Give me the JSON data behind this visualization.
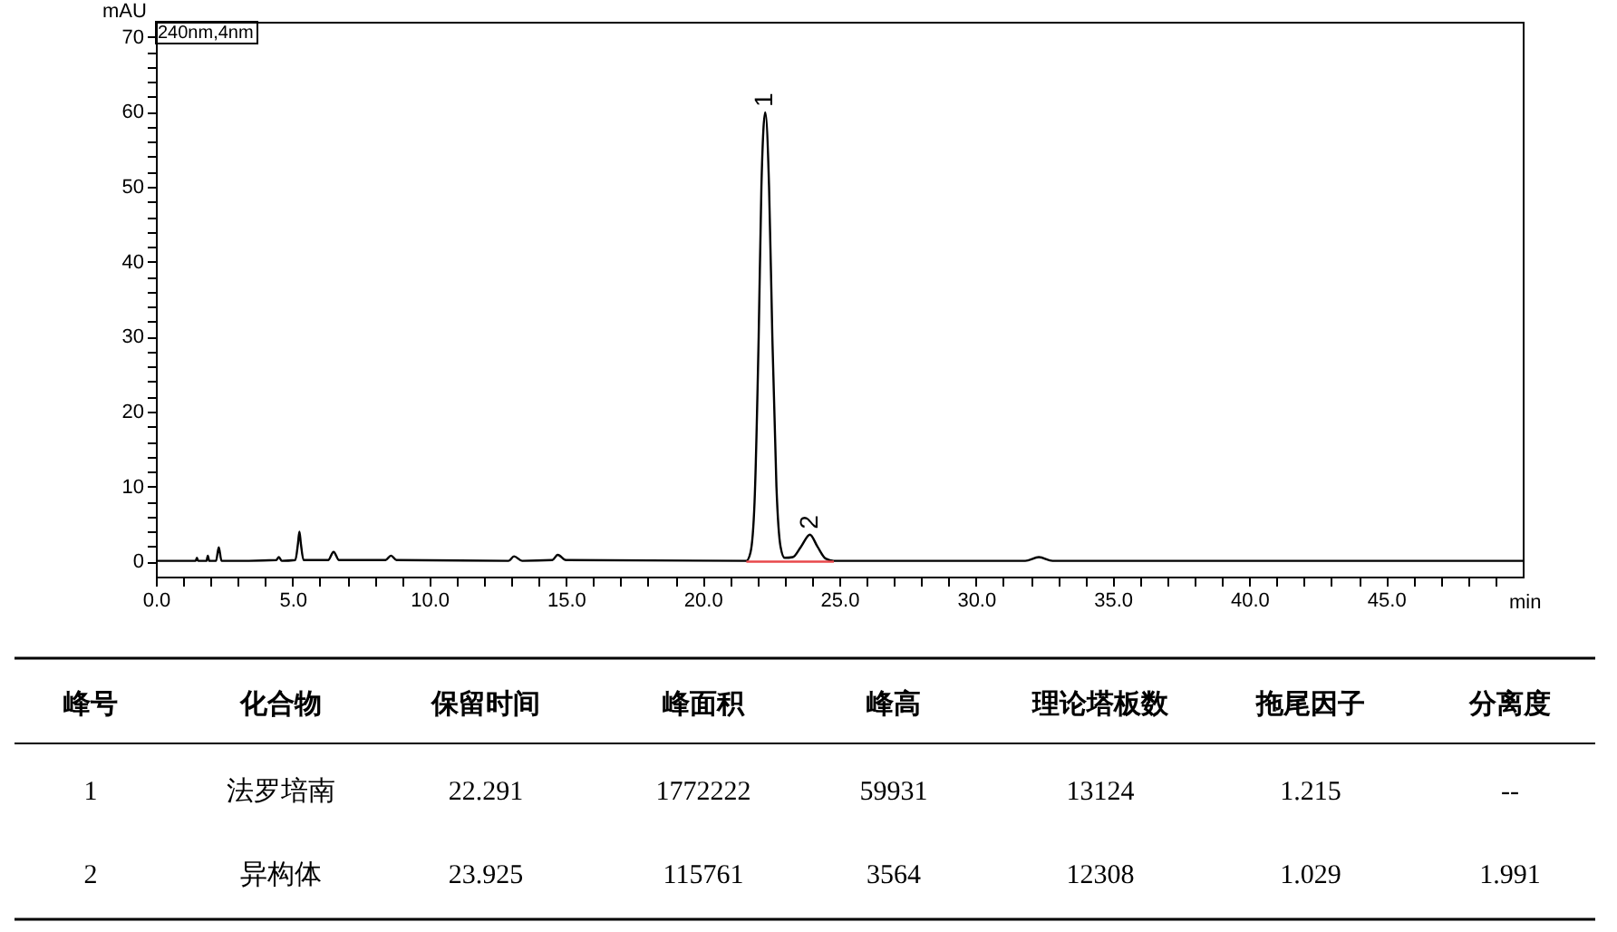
{
  "chart_data": {
    "type": "line",
    "xlabel": "min",
    "ylabel": "mAU",
    "xlim": [
      0,
      50
    ],
    "ylim": [
      -2,
      72
    ],
    "xticks": [
      {
        "value": 0,
        "label": "0.0"
      },
      {
        "value": 1,
        "label": null
      },
      {
        "value": 2,
        "label": null
      },
      {
        "value": 3,
        "label": null
      },
      {
        "value": 4,
        "label": null
      },
      {
        "value": 5,
        "label": "5.0"
      },
      {
        "value": 6,
        "label": null
      },
      {
        "value": 7,
        "label": null
      },
      {
        "value": 8,
        "label": null
      },
      {
        "value": 9,
        "label": null
      },
      {
        "value": 10,
        "label": "10.0"
      },
      {
        "value": 11,
        "label": null
      },
      {
        "value": 12,
        "label": null
      },
      {
        "value": 13,
        "label": null
      },
      {
        "value": 14,
        "label": null
      },
      {
        "value": 15,
        "label": "15.0"
      },
      {
        "value": 16,
        "label": null
      },
      {
        "value": 17,
        "label": null
      },
      {
        "value": 18,
        "label": null
      },
      {
        "value": 19,
        "label": null
      },
      {
        "value": 20,
        "label": "20.0"
      },
      {
        "value": 21,
        "label": null
      },
      {
        "value": 22,
        "label": null
      },
      {
        "value": 23,
        "label": null
      },
      {
        "value": 24,
        "label": null
      },
      {
        "value": 25,
        "label": "25.0"
      },
      {
        "value": 26,
        "label": null
      },
      {
        "value": 27,
        "label": null
      },
      {
        "value": 28,
        "label": null
      },
      {
        "value": 29,
        "label": null
      },
      {
        "value": 30,
        "label": "30.0"
      },
      {
        "value": 31,
        "label": null
      },
      {
        "value": 32,
        "label": null
      },
      {
        "value": 33,
        "label": null
      },
      {
        "value": 34,
        "label": null
      },
      {
        "value": 35,
        "label": "35.0"
      },
      {
        "value": 36,
        "label": null
      },
      {
        "value": 37,
        "label": null
      },
      {
        "value": 38,
        "label": null
      },
      {
        "value": 39,
        "label": null
      },
      {
        "value": 40,
        "label": "40.0"
      },
      {
        "value": 41,
        "label": null
      },
      {
        "value": 42,
        "label": null
      },
      {
        "value": 43,
        "label": null
      },
      {
        "value": 44,
        "label": null
      },
      {
        "value": 45,
        "label": "45.0"
      },
      {
        "value": 46,
        "label": null
      },
      {
        "value": 47,
        "label": null
      },
      {
        "value": 48,
        "label": null
      },
      {
        "value": 49,
        "label": null
      }
    ],
    "yticks": [
      0,
      {
        "value": 2,
        "label": null
      },
      {
        "value": 4,
        "label": null
      },
      {
        "value": 6,
        "label": null
      },
      {
        "value": 8,
        "label": null
      },
      10,
      {
        "value": 12,
        "label": null
      },
      {
        "value": 14,
        "label": null
      },
      {
        "value": 16,
        "label": null
      },
      {
        "value": 18,
        "label": null
      },
      20,
      {
        "value": 22,
        "label": null
      },
      {
        "value": 24,
        "label": null
      },
      {
        "value": 26,
        "label": null
      },
      {
        "value": 28,
        "label": null
      },
      30,
      {
        "value": 32,
        "label": null
      },
      {
        "value": 34,
        "label": null
      },
      {
        "value": 36,
        "label": null
      },
      {
        "value": 38,
        "label": null
      },
      40,
      {
        "value": 42,
        "label": null
      },
      {
        "value": 44,
        "label": null
      },
      {
        "value": 46,
        "label": null
      },
      {
        "value": 48,
        "label": null
      },
      50,
      {
        "value": 52,
        "label": null
      },
      {
        "value": 54,
        "label": null
      },
      {
        "value": 56,
        "label": null
      },
      {
        "value": 58,
        "label": null
      },
      60,
      {
        "value": 62,
        "label": null
      },
      {
        "value": 64,
        "label": null
      },
      {
        "value": 66,
        "label": null
      },
      {
        "value": 68,
        "label": null
      },
      70
    ],
    "grid": false,
    "marker": "none",
    "line_style": "solid",
    "series": [
      {
        "color": "#000000",
        "x": [
          0,
          1.0,
          1.45,
          1.5,
          1.55,
          1.85,
          1.9,
          1.95,
          2.2,
          2.3,
          2.4,
          3.4,
          4.4,
          4.5,
          4.6,
          5.1,
          5.2,
          5.25,
          5.3,
          5.4,
          6.3,
          6.5,
          6.7,
          8.4,
          8.6,
          8.8,
          12.9,
          13.1,
          13.4,
          14.5,
          14.7,
          15.0,
          21.6,
          21.75,
          21.9,
          22.05,
          22.15,
          22.291,
          22.43,
          22.55,
          22.7,
          22.85,
          23.0,
          23.3,
          23.6,
          23.925,
          24.2,
          24.5,
          24.8,
          31.8,
          32.3,
          32.8,
          50
        ],
        "values": [
          0.1,
          0.1,
          0.1,
          0.5,
          0.1,
          0.1,
          0.8,
          0.1,
          0.1,
          1.9,
          0.1,
          0.1,
          0.2,
          0.6,
          0.1,
          0.2,
          2.5,
          4.0,
          2.5,
          0.2,
          0.2,
          1.3,
          0.2,
          0.2,
          0.8,
          0.2,
          0.1,
          0.7,
          0.1,
          0.2,
          0.9,
          0.2,
          0.1,
          1.2,
          8,
          30,
          50,
          59.9,
          50,
          30,
          10,
          2,
          0.5,
          0.6,
          2,
          3.6,
          2,
          0.4,
          0.1,
          0.1,
          0.6,
          0.1,
          0.1
        ]
      },
      {
        "color": "#e8484b",
        "x": [
          21.6,
          24.8
        ],
        "values": [
          0,
          0
        ]
      }
    ],
    "annotations": [
      "240nm,4nm",
      {
        "text": "1",
        "x": 22.291,
        "y": 59.9
      },
      {
        "text": "2",
        "x": 23.925,
        "y": 3.6
      },
      "峰号",
      "化合物",
      "保留时间",
      "峰面积",
      "峰高",
      "理论塔板数",
      "拖尾因子",
      "分离度",
      "1",
      "法罗培南",
      "22.291",
      "1772222",
      "59931",
      "13124",
      "1.215",
      "--",
      "2",
      "异构体",
      "23.925",
      "115761",
      "3564",
      "12308",
      "1.029",
      "1.991"
    ]
  }
}
